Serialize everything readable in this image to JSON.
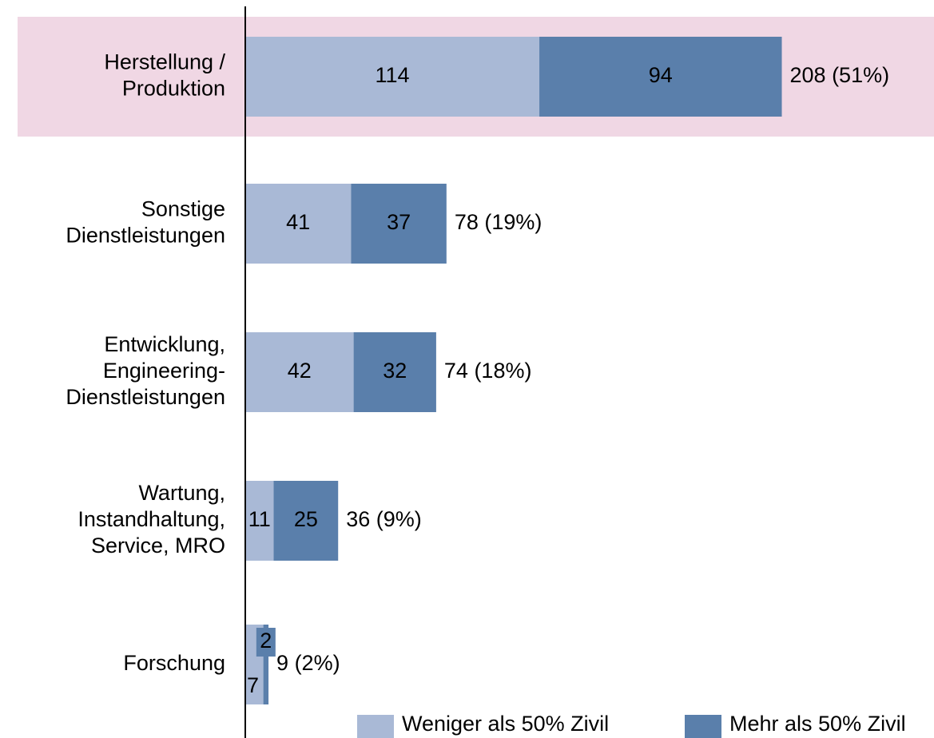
{
  "chart_data": {
    "type": "hbar-stacked",
    "categories": [
      [
        "Herstellung /",
        "Produktion"
      ],
      [
        "Sonstige",
        "Dienstleistungen"
      ],
      [
        "Entwicklung,",
        "Engineering-",
        "Dienstleistungen"
      ],
      [
        "Wartung,",
        "Instandhaltung,",
        "Service, MRO"
      ],
      [
        "Forschung"
      ]
    ],
    "series": [
      {
        "name": "Weniger als 50% Zivil",
        "color": "#a9b9d6",
        "label_color": "#000000",
        "values": [
          114,
          41,
          42,
          11,
          7
        ]
      },
      {
        "name": "Mehr als 50% Zivil",
        "color": "#5a7fab",
        "label_color": "#ffffff",
        "values": [
          94,
          37,
          32,
          25,
          2
        ]
      }
    ],
    "total_labels": [
      "208 (51%)",
      "78 (19%)",
      "74 (18%)",
      "36 (9%)",
      "9 (2%)"
    ],
    "xlim": [
      0,
      267
    ],
    "highlight": 0,
    "highlight_color": "#f0d7e4",
    "legend": "bottom-right"
  }
}
